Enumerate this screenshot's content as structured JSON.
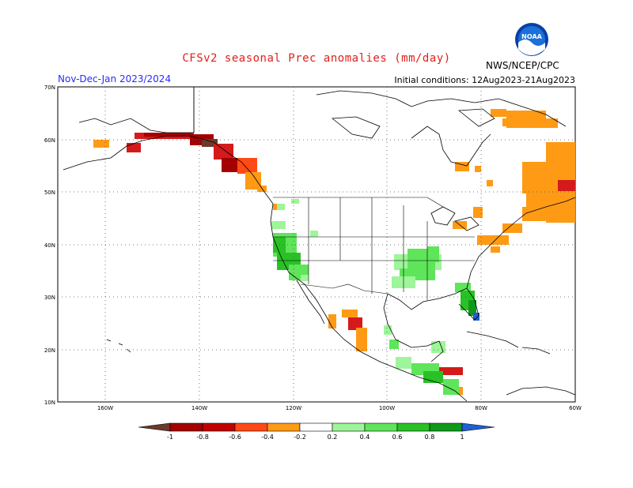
{
  "header": {
    "title": "CFSv2 seasonal Prec anomalies (mm/day)",
    "season": "Nov-Dec-Jan 2023/2024",
    "initial_conditions": "Initial conditions: 12Aug2023-21Aug2023",
    "agency": "NWS/NCEP/CPC",
    "logo_text": "NOAA"
  },
  "map": {
    "lat_labels": [
      "70N",
      "60N",
      "50N",
      "40N",
      "30N",
      "20N",
      "10N"
    ],
    "lon_labels": [
      "160W",
      "140W",
      "120W",
      "100W",
      "80W",
      "60W"
    ],
    "lat_range": [
      10,
      70
    ],
    "lon_range": [
      -170,
      -60
    ],
    "grid": true
  },
  "legend": {
    "labels": [
      "-1",
      "-0.8",
      "-0.6",
      "-0.4",
      "-0.2",
      "0.2",
      "0.4",
      "0.6",
      "0.8",
      "1"
    ],
    "colors": [
      "#6b3a2a",
      "#a50000",
      "#d41a1a",
      "#ff4a16",
      "#ff9a15",
      "#ffffff",
      "#9ef59a",
      "#5ee55a",
      "#29c125",
      "#0d9a19",
      "#1f5fd8"
    ]
  },
  "colors": {
    "title": "#e0201a",
    "season": "#2a2aff",
    "dry_strong": "#a50000",
    "dry_weak": "#ff9a15",
    "wet_weak": "#9ef59a",
    "wet_strong": "#0d9a19"
  }
}
